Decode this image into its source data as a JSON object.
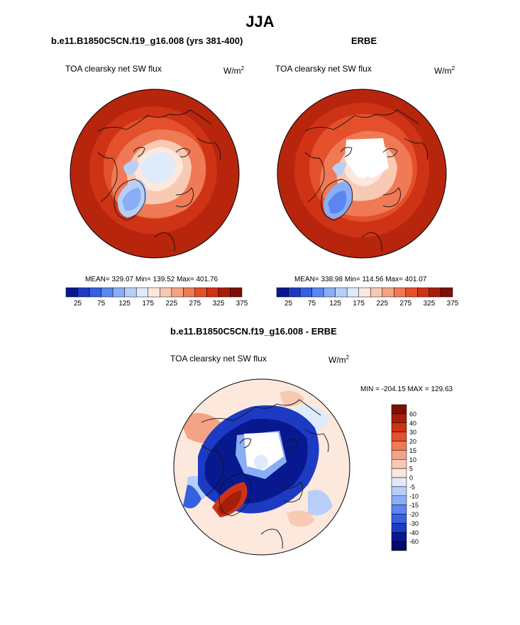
{
  "main_title": "JJA",
  "panels": [
    {
      "title": "b.e11.B1850C5CN.f19_g16.008 (yrs 381-400)",
      "variable": "TOA clearsky net SW flux",
      "units_base": "W/m",
      "units_exp": "2",
      "stats": "MEAN= 329.07  Min= 139.52  Max= 401.76"
    },
    {
      "title": "ERBE",
      "variable": "TOA clearsky net SW flux",
      "units_base": "W/m",
      "units_exp": "2",
      "stats": "MEAN= 338.98  Min= 114.56  Max= 401.07"
    },
    {
      "title": "b.e11.B1850C5CN.f19_g16.008 - ERBE",
      "variable": "TOA clearsky net SW flux",
      "units_base": "W/m",
      "units_exp": "2",
      "stats": "MIN = -204.15 MAX = 129.63"
    }
  ],
  "colors": {
    "ocean_dark_red": "#b8250d",
    "ice_blue": "#cfe3f7",
    "greenland_blue": "#7fa6e0",
    "diff_blue": "#0a2fa8",
    "diff_pale": "#fbe1d6"
  },
  "chart_data": [
    {
      "type": "heatmap",
      "projection": "north polar stereographic",
      "colorbar": {
        "orientation": "horizontal",
        "tick_labels": [
          "25",
          "75",
          "125",
          "175",
          "225",
          "275",
          "325",
          "375"
        ],
        "colors": [
          "#08198f",
          "#1c3bc2",
          "#3560e0",
          "#5c86ef",
          "#8aaef5",
          "#b7cff8",
          "#deebfb",
          "#fce8dd",
          "#f8c9b3",
          "#f4a385",
          "#ef7a55",
          "#e4502c",
          "#cf3315",
          "#a61e0a",
          "#7f0f04"
        ]
      },
      "stats": {
        "mean": 329.07,
        "min": 139.52,
        "max": 401.76
      }
    },
    {
      "type": "heatmap",
      "projection": "north polar stereographic",
      "colorbar": {
        "orientation": "horizontal",
        "tick_labels": [
          "25",
          "75",
          "125",
          "175",
          "225",
          "275",
          "325",
          "375"
        ],
        "colors": [
          "#08198f",
          "#1c3bc2",
          "#3560e0",
          "#5c86ef",
          "#8aaef5",
          "#b7cff8",
          "#deebfb",
          "#fce8dd",
          "#f8c9b3",
          "#f4a385",
          "#ef7a55",
          "#e4502c",
          "#cf3315",
          "#a61e0a",
          "#7f0f04"
        ]
      },
      "stats": {
        "mean": 338.98,
        "min": 114.56,
        "max": 401.07
      }
    },
    {
      "type": "heatmap",
      "projection": "north polar stereographic",
      "colorbar": {
        "orientation": "vertical",
        "tick_labels": [
          "60",
          "40",
          "30",
          "20",
          "15",
          "10",
          "5",
          "0",
          "-5",
          "-10",
          "-15",
          "-20",
          "-30",
          "-40",
          "-60"
        ],
        "colors": [
          "#7f0f04",
          "#a61e0a",
          "#cf3315",
          "#e4502c",
          "#ef7a55",
          "#f4a385",
          "#f8c9b3",
          "#fce8dd",
          "#deebfb",
          "#b7cff8",
          "#8aaef5",
          "#5c86ef",
          "#3560e0",
          "#1c3bc2",
          "#08198f",
          "#020a66"
        ]
      },
      "stats": {
        "min": -204.15,
        "max": 129.63
      }
    }
  ]
}
